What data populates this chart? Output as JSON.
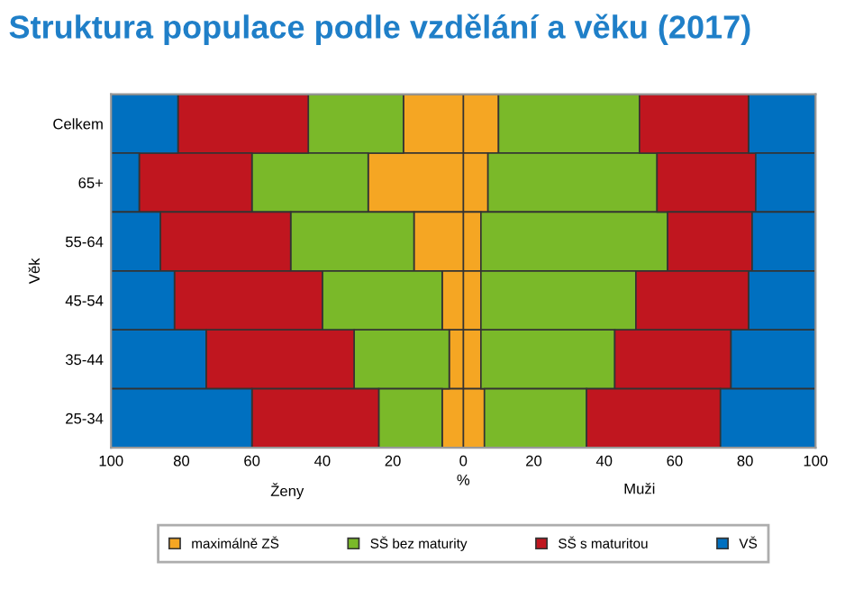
{
  "chart_data": {
    "type": "bar",
    "orientation": "horizontal",
    "stacked": true,
    "title": "Struktura populace podle vzdělání a věku (2017)",
    "xlabel": "%",
    "ylabel": "Věk",
    "annotations": [
      "Ženy",
      "Muži"
    ],
    "categories": [
      "Celkem",
      "65+",
      "55-64",
      "45-54",
      "35-44",
      "25-34"
    ],
    "series": [
      {
        "name": "maximálně ZŠ",
        "color": "#f5a623",
        "values": [
          10,
          7,
          5,
          5,
          5,
          6
        ]
      },
      {
        "name": "SŠ bez maturity",
        "color": "#7ab929",
        "values": [
          40,
          48,
          53,
          44,
          38,
          29
        ]
      },
      {
        "name": "SŠ s maturitou",
        "color": "#c0161f",
        "values": [
          31,
          28,
          24,
          32,
          33,
          38
        ]
      },
      {
        "name": "VŠ",
        "color": "#0070c0",
        "values": [
          19,
          17,
          18,
          19,
          24,
          27
        ]
      },
      {
        "color": "#f5a623",
        "values": [
          -17,
          -27,
          -14,
          -6,
          -4,
          -6
        ]
      },
      {
        "color": "#7ab929",
        "values": [
          -27,
          -33,
          -35,
          -34,
          -27,
          -18
        ]
      },
      {
        "color": "#c0161f",
        "values": [
          -37,
          -32,
          -37,
          -42,
          -42,
          -36
        ]
      },
      {
        "color": "#0070c0",
        "values": [
          -19,
          -8,
          -14,
          -18,
          -27,
          -40
        ]
      }
    ],
    "xlim": [
      -100,
      100
    ],
    "xticks": [
      {
        "value": -100,
        "label": "100"
      },
      {
        "value": -80,
        "label": "80"
      },
      {
        "value": -60,
        "label": "60"
      },
      {
        "value": -40,
        "label": "40"
      },
      {
        "value": -20,
        "label": "20"
      },
      0,
      20,
      40,
      60,
      80,
      100
    ],
    "legend": "bottom",
    "grid": false
  }
}
